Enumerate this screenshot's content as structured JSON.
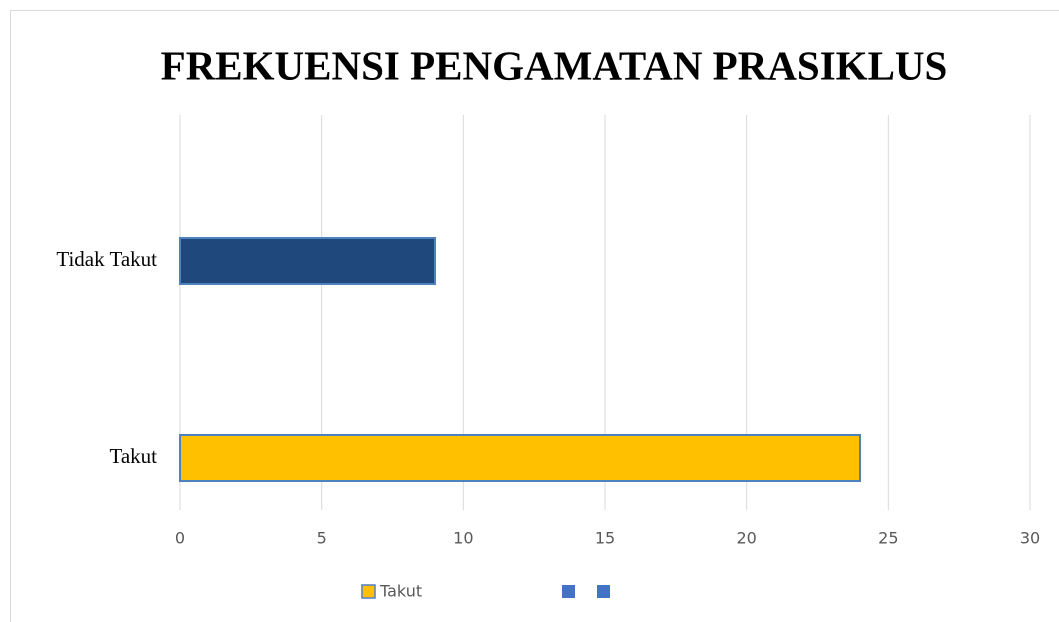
{
  "chart_data": {
    "type": "barh",
    "title": "FREKUENSI PENGAMATAN PRASIKLUS",
    "categories": [
      "Takut",
      "Tidak Takut"
    ],
    "values": [
      24,
      9
    ],
    "colors": [
      "#ffc000",
      "#1f497d"
    ],
    "xlim": [
      0,
      30
    ],
    "xticks": [
      0,
      5,
      10,
      15,
      20,
      25,
      30
    ],
    "grid": true,
    "legend": [
      {
        "name": "Takut",
        "color": "#ffc000"
      },
      {
        "name": null,
        "color": "#4472c4"
      },
      {
        "name": null,
        "color": "#4472c4"
      }
    ],
    "legend_position": "bottom"
  }
}
